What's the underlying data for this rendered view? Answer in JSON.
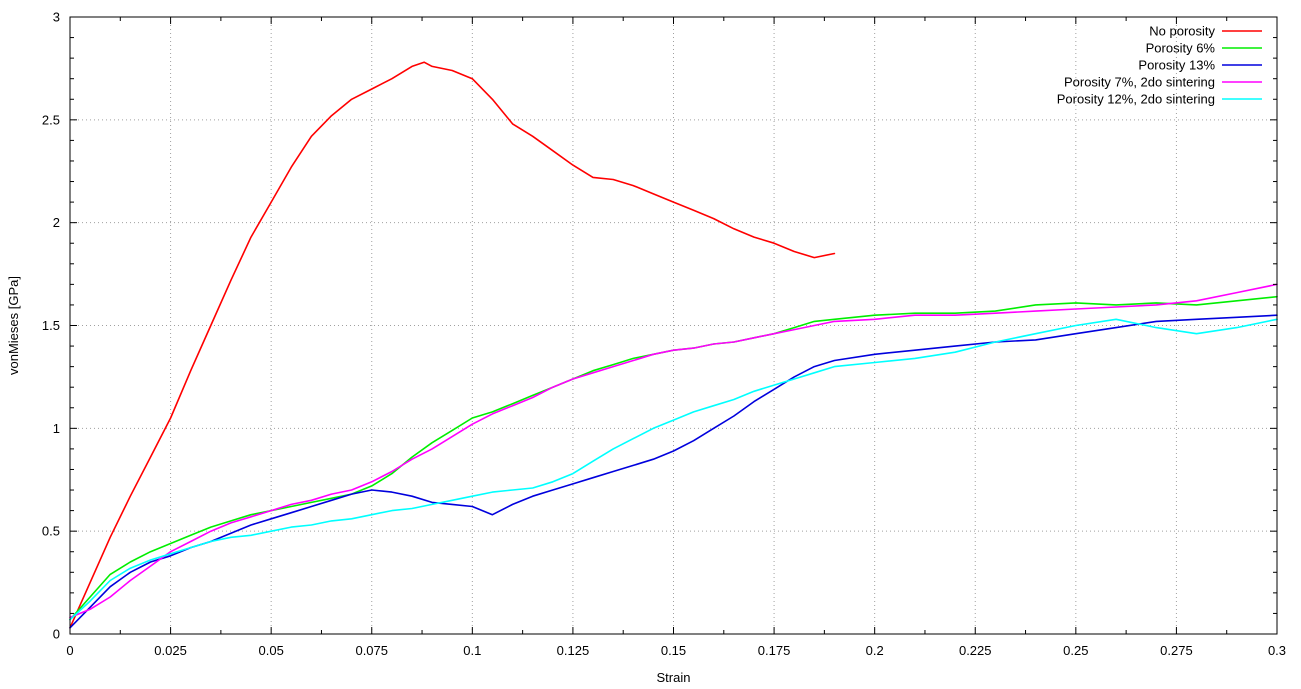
{
  "chart_data": {
    "type": "line",
    "title": "",
    "xlabel": "Strain",
    "ylabel": "vonMieses [GPa]",
    "xlim": [
      0,
      0.3
    ],
    "ylim": [
      0,
      3
    ],
    "xticks": [
      "0",
      "0.025",
      "0.05",
      "0.075",
      "0.1",
      "0.125",
      "0.15",
      "0.175",
      "0.2",
      "0.225",
      "0.25",
      "0.275",
      "0.3"
    ],
    "yticks": [
      "0",
      "0.5",
      "1",
      "1.5",
      "2",
      "2.5",
      "3"
    ],
    "grid": true,
    "legend_position": "top-right",
    "series": [
      {
        "name": "No porosity",
        "color": "#ff0000",
        "x": [
          0,
          0.005,
          0.01,
          0.015,
          0.02,
          0.025,
          0.03,
          0.035,
          0.04,
          0.045,
          0.05,
          0.055,
          0.06,
          0.065,
          0.07,
          0.075,
          0.08,
          0.085,
          0.088,
          0.09,
          0.095,
          0.1,
          0.105,
          0.11,
          0.115,
          0.12,
          0.125,
          0.13,
          0.135,
          0.14,
          0.145,
          0.15,
          0.155,
          0.16,
          0.165,
          0.17,
          0.175,
          0.18,
          0.185,
          0.19
        ],
        "y": [
          0.03,
          0.25,
          0.47,
          0.67,
          0.86,
          1.05,
          1.28,
          1.5,
          1.72,
          1.93,
          2.1,
          2.27,
          2.42,
          2.52,
          2.6,
          2.65,
          2.7,
          2.76,
          2.78,
          2.76,
          2.74,
          2.7,
          2.6,
          2.48,
          2.42,
          2.35,
          2.28,
          2.22,
          2.21,
          2.18,
          2.14,
          2.1,
          2.06,
          2.02,
          1.97,
          1.93,
          1.9,
          1.86,
          1.83,
          1.85
        ]
      },
      {
        "name": "Porosity 6%",
        "color": "#00ee00",
        "x": [
          0,
          0.005,
          0.01,
          0.015,
          0.02,
          0.025,
          0.03,
          0.035,
          0.04,
          0.045,
          0.05,
          0.055,
          0.06,
          0.065,
          0.07,
          0.075,
          0.08,
          0.085,
          0.09,
          0.095,
          0.1,
          0.105,
          0.11,
          0.115,
          0.12,
          0.125,
          0.13,
          0.135,
          0.14,
          0.145,
          0.15,
          0.155,
          0.16,
          0.165,
          0.17,
          0.175,
          0.18,
          0.185,
          0.19,
          0.2,
          0.21,
          0.22,
          0.23,
          0.24,
          0.25,
          0.26,
          0.27,
          0.28,
          0.29,
          0.3
        ],
        "y": [
          0.07,
          0.18,
          0.29,
          0.35,
          0.4,
          0.44,
          0.48,
          0.52,
          0.55,
          0.58,
          0.6,
          0.62,
          0.64,
          0.66,
          0.68,
          0.72,
          0.78,
          0.86,
          0.93,
          0.99,
          1.05,
          1.08,
          1.12,
          1.16,
          1.2,
          1.24,
          1.28,
          1.31,
          1.34,
          1.36,
          1.38,
          1.39,
          1.41,
          1.42,
          1.44,
          1.46,
          1.49,
          1.52,
          1.53,
          1.55,
          1.56,
          1.56,
          1.57,
          1.6,
          1.61,
          1.6,
          1.61,
          1.6,
          1.62,
          1.64
        ]
      },
      {
        "name": "Porosity 13%",
        "color": "#0000dd",
        "x": [
          0,
          0.005,
          0.01,
          0.015,
          0.02,
          0.025,
          0.03,
          0.035,
          0.04,
          0.045,
          0.05,
          0.055,
          0.06,
          0.065,
          0.07,
          0.075,
          0.08,
          0.085,
          0.09,
          0.095,
          0.1,
          0.105,
          0.11,
          0.115,
          0.12,
          0.125,
          0.13,
          0.135,
          0.14,
          0.145,
          0.15,
          0.155,
          0.16,
          0.165,
          0.17,
          0.175,
          0.18,
          0.185,
          0.19,
          0.2,
          0.21,
          0.22,
          0.23,
          0.24,
          0.25,
          0.26,
          0.27,
          0.28,
          0.29,
          0.3
        ],
        "y": [
          0.03,
          0.13,
          0.23,
          0.3,
          0.35,
          0.38,
          0.42,
          0.45,
          0.49,
          0.53,
          0.56,
          0.59,
          0.62,
          0.65,
          0.68,
          0.7,
          0.69,
          0.67,
          0.64,
          0.63,
          0.62,
          0.58,
          0.63,
          0.67,
          0.7,
          0.73,
          0.76,
          0.79,
          0.82,
          0.85,
          0.89,
          0.94,
          1.0,
          1.06,
          1.13,
          1.19,
          1.25,
          1.3,
          1.33,
          1.36,
          1.38,
          1.4,
          1.42,
          1.43,
          1.46,
          1.49,
          1.52,
          1.53,
          1.54,
          1.55
        ]
      },
      {
        "name": "Porosity 7%, 2do sintering",
        "color": "#ff00ff",
        "x": [
          0,
          0.005,
          0.01,
          0.015,
          0.02,
          0.025,
          0.03,
          0.035,
          0.04,
          0.045,
          0.05,
          0.055,
          0.06,
          0.065,
          0.07,
          0.075,
          0.08,
          0.085,
          0.09,
          0.095,
          0.1,
          0.105,
          0.11,
          0.115,
          0.12,
          0.125,
          0.13,
          0.135,
          0.14,
          0.145,
          0.15,
          0.155,
          0.16,
          0.165,
          0.17,
          0.175,
          0.18,
          0.185,
          0.19,
          0.2,
          0.21,
          0.22,
          0.23,
          0.24,
          0.25,
          0.26,
          0.27,
          0.28,
          0.29,
          0.3
        ],
        "y": [
          0.08,
          0.12,
          0.18,
          0.26,
          0.33,
          0.4,
          0.45,
          0.5,
          0.54,
          0.57,
          0.6,
          0.63,
          0.65,
          0.68,
          0.7,
          0.74,
          0.79,
          0.85,
          0.9,
          0.96,
          1.02,
          1.07,
          1.11,
          1.15,
          1.2,
          1.24,
          1.27,
          1.3,
          1.33,
          1.36,
          1.38,
          1.39,
          1.41,
          1.42,
          1.44,
          1.46,
          1.48,
          1.5,
          1.52,
          1.53,
          1.55,
          1.55,
          1.56,
          1.57,
          1.58,
          1.59,
          1.6,
          1.62,
          1.66,
          1.7
        ]
      },
      {
        "name": "Porosity 12%, 2do sintering",
        "color": "#00ffff",
        "x": [
          0,
          0.005,
          0.01,
          0.015,
          0.02,
          0.025,
          0.03,
          0.035,
          0.04,
          0.045,
          0.05,
          0.055,
          0.06,
          0.065,
          0.07,
          0.075,
          0.08,
          0.085,
          0.09,
          0.095,
          0.1,
          0.105,
          0.11,
          0.115,
          0.12,
          0.125,
          0.13,
          0.135,
          0.14,
          0.145,
          0.15,
          0.155,
          0.16,
          0.165,
          0.17,
          0.175,
          0.18,
          0.185,
          0.19,
          0.2,
          0.21,
          0.22,
          0.23,
          0.24,
          0.25,
          0.26,
          0.27,
          0.28,
          0.29,
          0.3
        ],
        "y": [
          0.07,
          0.16,
          0.26,
          0.32,
          0.36,
          0.39,
          0.42,
          0.45,
          0.47,
          0.48,
          0.5,
          0.52,
          0.53,
          0.55,
          0.56,
          0.58,
          0.6,
          0.61,
          0.63,
          0.65,
          0.67,
          0.69,
          0.7,
          0.71,
          0.74,
          0.78,
          0.84,
          0.9,
          0.95,
          1.0,
          1.04,
          1.08,
          1.11,
          1.14,
          1.18,
          1.21,
          1.24,
          1.27,
          1.3,
          1.32,
          1.34,
          1.37,
          1.42,
          1.46,
          1.5,
          1.53,
          1.49,
          1.46,
          1.49,
          1.53
        ]
      }
    ]
  }
}
